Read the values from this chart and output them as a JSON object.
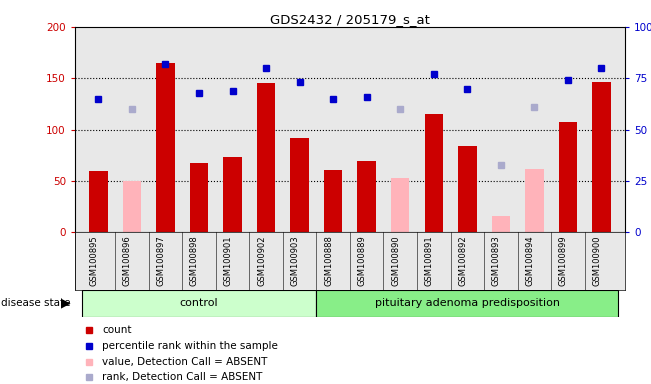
{
  "title": "GDS2432 / 205179_s_at",
  "samples": [
    "GSM100895",
    "GSM100896",
    "GSM100897",
    "GSM100898",
    "GSM100901",
    "GSM100902",
    "GSM100903",
    "GSM100888",
    "GSM100889",
    "GSM100890",
    "GSM100891",
    "GSM100892",
    "GSM100893",
    "GSM100894",
    "GSM100899",
    "GSM100900"
  ],
  "count_values": [
    60,
    null,
    165,
    67,
    73,
    145,
    92,
    61,
    69,
    null,
    115,
    84,
    null,
    null,
    107,
    146
  ],
  "count_absent": [
    null,
    50,
    null,
    null,
    null,
    null,
    null,
    null,
    null,
    53,
    null,
    null,
    16,
    62,
    null,
    null
  ],
  "percentile_values": [
    65,
    null,
    82,
    68,
    69,
    80,
    73,
    65,
    66,
    null,
    77,
    70,
    null,
    null,
    74,
    80
  ],
  "percentile_absent": [
    null,
    60,
    null,
    null,
    null,
    null,
    null,
    null,
    null,
    60,
    null,
    null,
    33,
    61,
    null,
    null
  ],
  "group_labels": [
    "control",
    "pituitary adenoma predisposition"
  ],
  "control_range": [
    0,
    6
  ],
  "pituitary_range": [
    7,
    15
  ],
  "ylim_left": [
    0,
    200
  ],
  "ylim_right": [
    0,
    100
  ],
  "yticks_left": [
    0,
    50,
    100,
    150,
    200
  ],
  "yticks_right": [
    0,
    25,
    50,
    75,
    100
  ],
  "bar_color_red": "#cc0000",
  "bar_color_pink": "#ffb3ba",
  "dot_color_blue": "#0000cc",
  "dot_color_lightblue": "#aaaacc",
  "background_plot": "#e8e8e8",
  "background_control": "#ccffcc",
  "background_pituitary": "#88ee88",
  "legend_items": [
    "count",
    "percentile rank within the sample",
    "value, Detection Call = ABSENT",
    "rank, Detection Call = ABSENT"
  ]
}
